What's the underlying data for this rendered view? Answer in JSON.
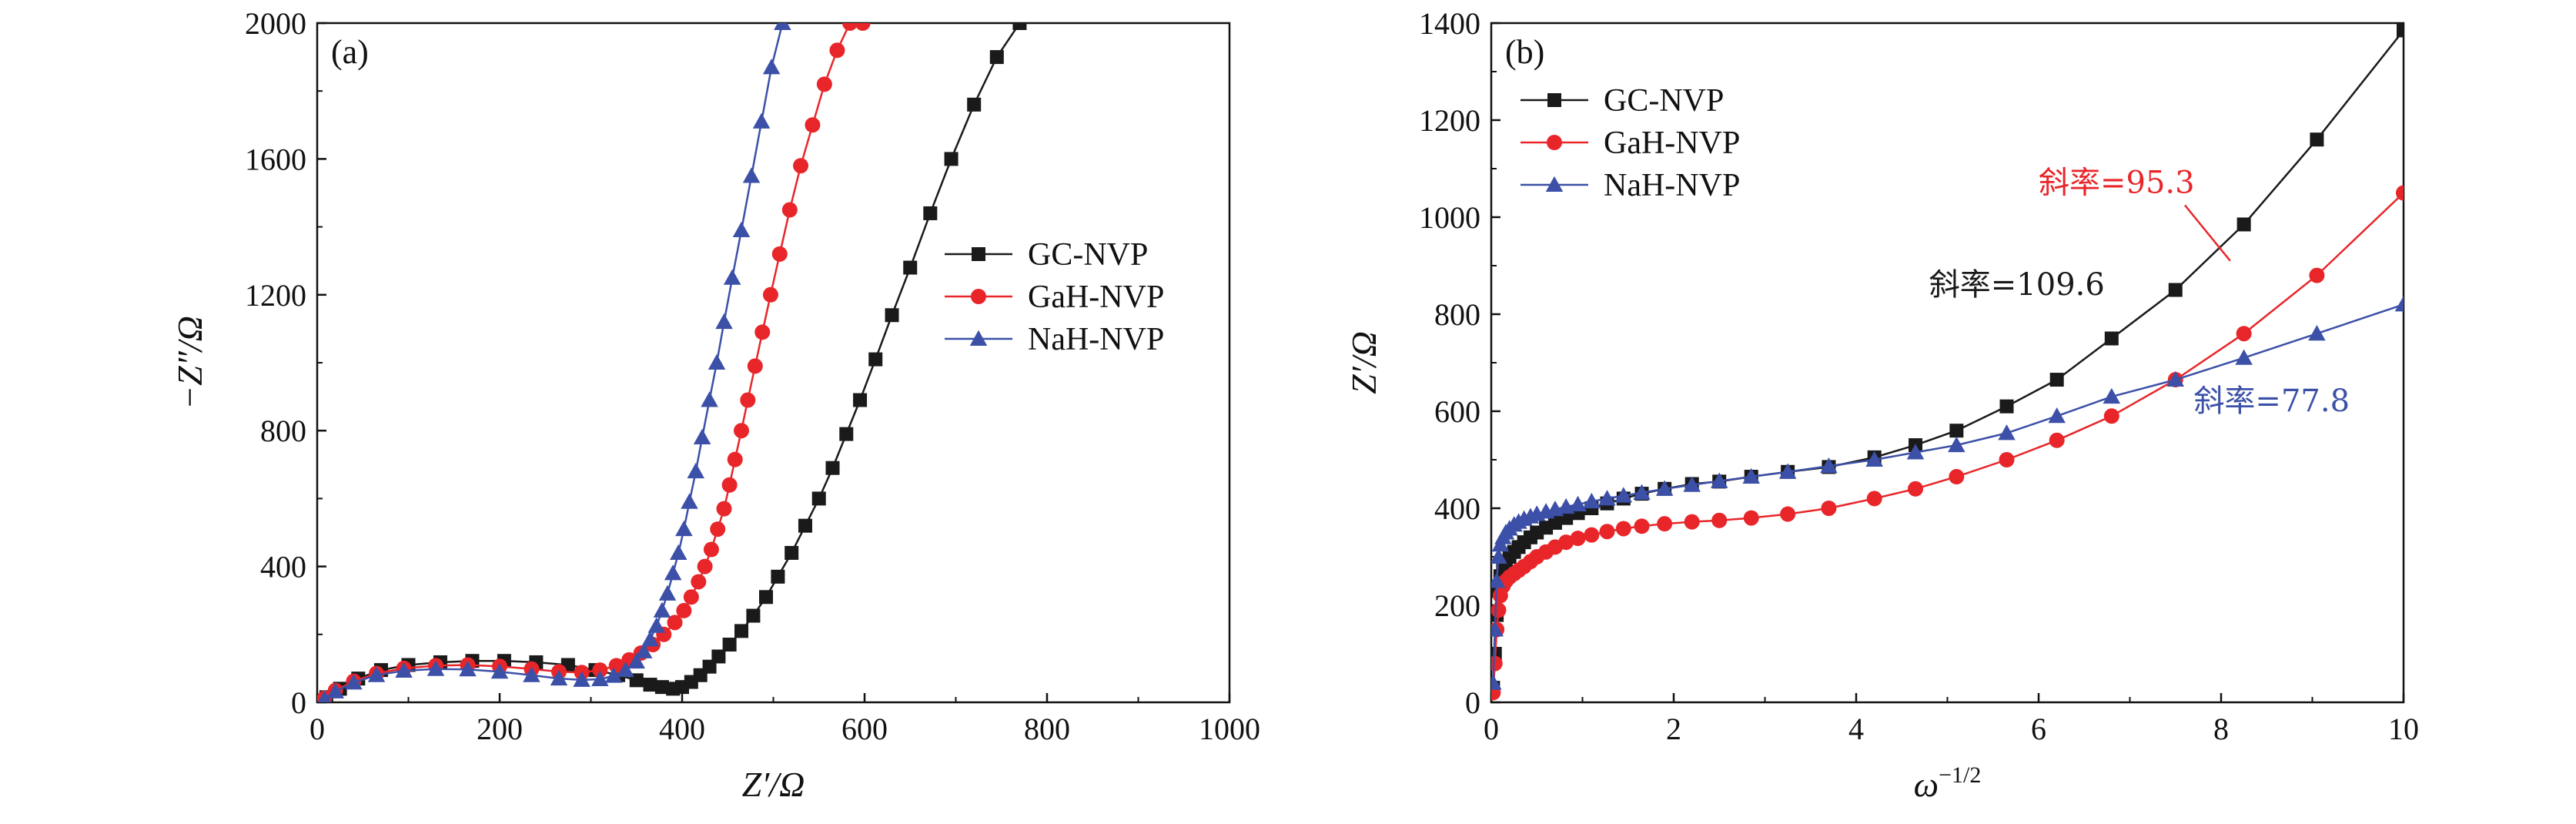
{
  "chart_data": [
    {
      "type": "scatter",
      "panel_label": "(a)",
      "xlabel": "Z′/Ω",
      "ylabel": "−Z″/Ω",
      "xlim": [
        0,
        1000
      ],
      "ylim": [
        0,
        2000
      ],
      "xticks": [
        "0",
        "200",
        "400",
        "600",
        "800",
        "1000"
      ],
      "yticks": [
        "0",
        "400",
        "800",
        "1200",
        "1600",
        "2000"
      ],
      "legend": {
        "placement": "right-middle",
        "entries": [
          "GC-NVP",
          "GaH-NVP",
          "NaH-NVP"
        ]
      },
      "series": [
        {
          "name": "GC-NVP",
          "color": "#1a1a1a",
          "marker": "square",
          "x": [
            10,
            25,
            45,
            70,
            100,
            135,
            170,
            205,
            240,
            275,
            305,
            330,
            350,
            365,
            378,
            390,
            400,
            410,
            420,
            430,
            440,
            452,
            465,
            478,
            492,
            505,
            520,
            535,
            550,
            565,
            580,
            595,
            612,
            630,
            650,
            672,
            695,
            720,
            745,
            770
          ],
          "y": [
            15,
            40,
            70,
            95,
            110,
            118,
            122,
            122,
            118,
            110,
            95,
            80,
            65,
            52,
            45,
            40,
            45,
            60,
            80,
            105,
            135,
            170,
            210,
            255,
            310,
            370,
            440,
            520,
            600,
            690,
            790,
            890,
            1010,
            1140,
            1280,
            1440,
            1600,
            1760,
            1900,
            2000
          ]
        },
        {
          "name": "GaH-NVP",
          "color": "#e8262a",
          "marker": "circle",
          "x": [
            8,
            20,
            40,
            65,
            95,
            130,
            165,
            200,
            235,
            265,
            290,
            310,
            328,
            342,
            355,
            368,
            380,
            392,
            402,
            410,
            418,
            425,
            432,
            439,
            446,
            452,
            458,
            465,
            472,
            480,
            488,
            497,
            507,
            518,
            530,
            543,
            556,
            570,
            584,
            598
          ],
          "y": [
            12,
            35,
            62,
            85,
            100,
            108,
            110,
            106,
            98,
            90,
            88,
            95,
            108,
            125,
            145,
            170,
            200,
            235,
            270,
            310,
            355,
            400,
            450,
            510,
            570,
            640,
            715,
            800,
            890,
            990,
            1090,
            1200,
            1320,
            1450,
            1580,
            1700,
            1820,
            1920,
            2000,
            2000
          ]
        },
        {
          "name": "NaH-NVP",
          "color": "#3c50a8",
          "marker": "triangle",
          "x": [
            8,
            20,
            40,
            65,
            95,
            130,
            165,
            200,
            235,
            265,
            290,
            310,
            325,
            338,
            350,
            358,
            365,
            372,
            378,
            384,
            390,
            396,
            402,
            408,
            415,
            422,
            430,
            438,
            446,
            455,
            465,
            476,
            487,
            498,
            510
          ],
          "y": [
            10,
            32,
            58,
            80,
            93,
            98,
            97,
            90,
            80,
            70,
            66,
            68,
            78,
            95,
            120,
            150,
            185,
            225,
            270,
            320,
            380,
            440,
            510,
            590,
            680,
            780,
            890,
            1000,
            1120,
            1250,
            1390,
            1550,
            1710,
            1870,
            2000
          ]
        }
      ]
    },
    {
      "type": "scatter",
      "panel_label": "(b)",
      "xlabel": "ω",
      "xlabel_sup": "−1/2",
      "ylabel": "Z′/Ω",
      "xlim": [
        0,
        10
      ],
      "ylim": [
        0,
        1400
      ],
      "xticks": [
        "0",
        "2",
        "4",
        "6",
        "8",
        "10"
      ],
      "yticks": [
        "0",
        "200",
        "400",
        "600",
        "800",
        "1000",
        "1200",
        "1400"
      ],
      "legend": {
        "placement": "top-left",
        "entries": [
          "GC-NVP",
          "GaH-NVP",
          "NaH-NVP"
        ]
      },
      "annotations": [
        {
          "text": "斜率=95.3",
          "color": "#e8262a",
          "x": 6.0,
          "y": 1050,
          "arrow_to": [
            8.1,
            910
          ]
        },
        {
          "text": "斜率=109.6",
          "color": "#1a1a1a",
          "x": 4.8,
          "y": 840
        },
        {
          "text": "斜率=77.8",
          "color": "#3c50a8",
          "x": 7.7,
          "y": 600
        }
      ],
      "series": [
        {
          "name": "GC-NVP",
          "color": "#1a1a1a",
          "marker": "square",
          "x": [
            0.02,
            0.04,
            0.06,
            0.08,
            0.1,
            0.13,
            0.16,
            0.2,
            0.25,
            0.3,
            0.36,
            0.43,
            0.5,
            0.6,
            0.7,
            0.82,
            0.95,
            1.1,
            1.27,
            1.45,
            1.65,
            1.9,
            2.2,
            2.5,
            2.85,
            3.25,
            3.7,
            4.2,
            4.65,
            5.1,
            5.65,
            6.2,
            6.8,
            7.5,
            8.25,
            9.05,
            10.0
          ],
          "y": [
            30,
            100,
            180,
            230,
            260,
            280,
            290,
            300,
            310,
            320,
            330,
            340,
            350,
            360,
            370,
            380,
            390,
            400,
            410,
            420,
            430,
            440,
            450,
            455,
            465,
            475,
            485,
            505,
            530,
            560,
            610,
            665,
            750,
            850,
            985,
            1160,
            1385
          ]
        },
        {
          "name": "GaH-NVP",
          "color": "#e8262a",
          "marker": "circle",
          "x": [
            0.02,
            0.04,
            0.06,
            0.08,
            0.1,
            0.13,
            0.16,
            0.2,
            0.25,
            0.3,
            0.36,
            0.43,
            0.5,
            0.6,
            0.7,
            0.82,
            0.95,
            1.1,
            1.27,
            1.45,
            1.65,
            1.9,
            2.2,
            2.5,
            2.85,
            3.25,
            3.7,
            4.2,
            4.65,
            5.1,
            5.65,
            6.2,
            6.8,
            7.5,
            8.25,
            9.05,
            10.0
          ],
          "y": [
            20,
            80,
            150,
            190,
            220,
            240,
            250,
            258,
            265,
            272,
            280,
            290,
            300,
            310,
            320,
            330,
            338,
            345,
            352,
            358,
            363,
            368,
            372,
            375,
            380,
            388,
            400,
            420,
            440,
            465,
            500,
            540,
            590,
            665,
            760,
            880,
            1050
          ]
        },
        {
          "name": "NaH-NVP",
          "color": "#3c50a8",
          "marker": "triangle",
          "x": [
            0.02,
            0.04,
            0.06,
            0.08,
            0.1,
            0.13,
            0.16,
            0.2,
            0.25,
            0.3,
            0.36,
            0.43,
            0.5,
            0.6,
            0.7,
            0.82,
            0.95,
            1.1,
            1.27,
            1.45,
            1.65,
            1.9,
            2.2,
            2.5,
            2.85,
            3.25,
            3.7,
            4.2,
            4.65,
            5.1,
            5.65,
            6.2,
            6.8,
            7.5,
            8.25,
            9.05,
            10.0
          ],
          "y": [
            40,
            150,
            250,
            300,
            325,
            340,
            350,
            358,
            366,
            372,
            378,
            383,
            388,
            393,
            398,
            403,
            408,
            414,
            420,
            426,
            432,
            440,
            448,
            456,
            465,
            475,
            487,
            500,
            515,
            530,
            555,
            590,
            630,
            665,
            710,
            760,
            820
          ]
        }
      ]
    }
  ]
}
